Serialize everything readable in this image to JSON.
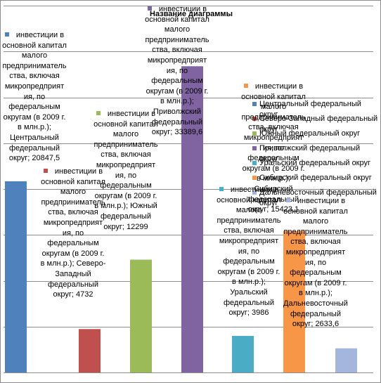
{
  "chart_data": {
    "type": "bar",
    "title": "Название диаграммы",
    "xlabel": "",
    "ylabel": "",
    "ylim": [
      0,
      40000
    ],
    "gridlines": true,
    "legend_placement": "right",
    "categories": [
      "Центральный федеральный округ",
      "Северо-Западный федеральный округ",
      "Южный федеральный округ",
      "Приволжский федеральный округ",
      "Уральский федеральный округ",
      "Сибирский федеральный округ",
      "Дальневосточный федеральный округ"
    ],
    "series_label": "инвестиции в основной капитал малого предпринимательства, включая микропредприятия, по федеральным округам (в 2009 г. в млн.р.)",
    "values": [
      20847.5,
      4732,
      12299,
      33389.6,
      3986,
      15423.1,
      2633.6
    ],
    "data_labels": [
      "инвестиции в основной капитал малого предприниматель ства, включая микропредприят ия, по федеральным округам (в 2009 г. в млн.р.); Центральный федеральный округ; 20847,5",
      "инвестиции в основной капитал малого предприниматель ства, включая микропредприят ия, по федеральным округам (в 2009 г. в млн.р.); Северо-Западный федеральный округ; 4732",
      "инвестиции в основной капитал малого предприниматель ства, включая микропредприят ия, по федеральным округам (в 2009 г. в млн.р.); Южный федеральный округ; 12299",
      "инвестиции в основной капитал малого предприниматель ства, включая микропредприят ия, по федеральным округам (в 2009 г. в млн.р.); Приволжский федеральный округ; 33389,6",
      "инвестиции в основной капитал малого предприниматель ства, включая микропредприят ия, по федеральным округам (в 2009 г. в млн.р.); Уральский федеральный округ; 3986",
      "инвестиции в основной капитал малого предприниматель ства, включая микропредприят ия, по федеральным округам (в 2009 г. в млн.р.); Сибирский федеральный округ; 15423,1",
      "инвестиции в основной капитал малого предприниматель ства, включая микропредприят ия, по федеральным округам (в 2009 г. в млн.р.); Дальневосточный федеральный округ; 2633,6"
    ],
    "colors": [
      "#4f81bd",
      "#c0504d",
      "#9bbb59",
      "#8064a2",
      "#4bacc6",
      "#f79646",
      "#a5b6de"
    ],
    "legend": [
      "Центральный федеральный округ",
      "Северо-Западный федеральный округ",
      "Южный федеральный округ",
      "Приволжский федеральный округ",
      "Уральский федеральный округ",
      "Сибирский федеральный округ",
      "Дальневосточный федеральный округ"
    ]
  }
}
